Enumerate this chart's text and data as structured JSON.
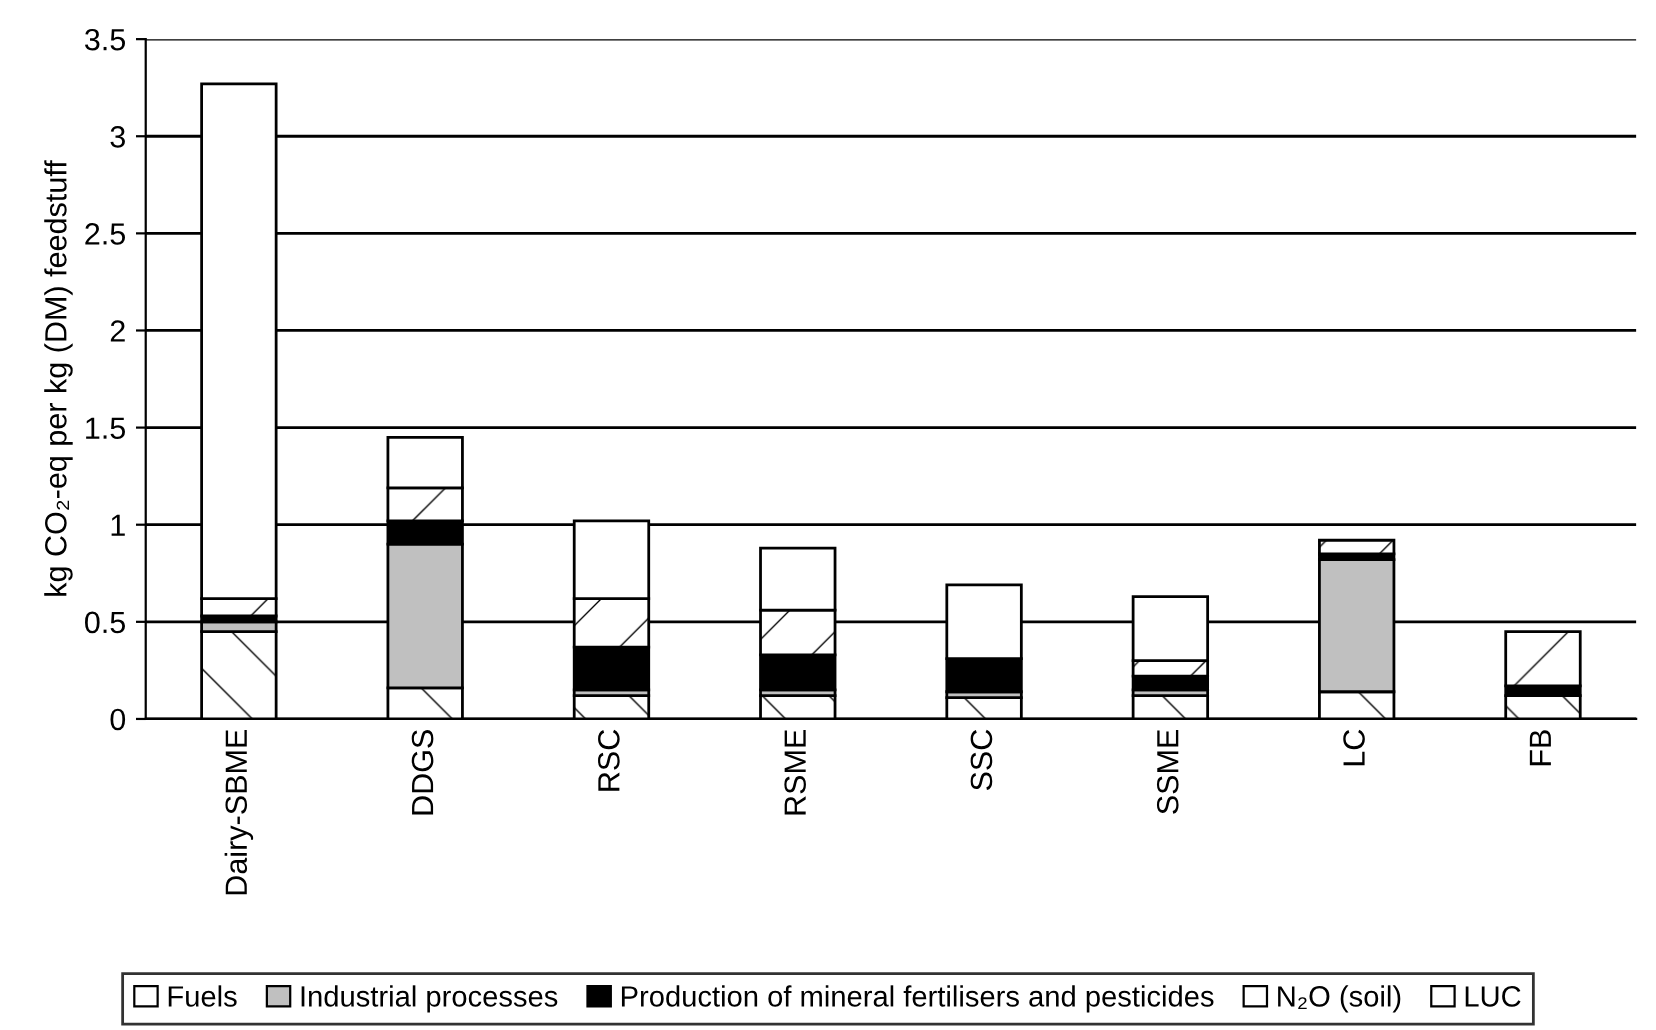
{
  "chart_data": {
    "type": "bar",
    "stacked": true,
    "ylabel": "kg CO₂-eq per kg (DM) feedstuff",
    "categories": [
      "Dairy-SBME",
      "DDGS",
      "RSC",
      "RSME",
      "SSC",
      "SSME",
      "LC",
      "FB"
    ],
    "series": [
      {
        "name": "Fuels",
        "color": "#ffffff",
        "values": [
          0.45,
          0.16,
          0.12,
          0.12,
          0.11,
          0.12,
          0.14,
          0.12
        ]
      },
      {
        "name": "Industrial processes",
        "color": "#c0c0c0",
        "values": [
          0.05,
          0.74,
          0.03,
          0.03,
          0.03,
          0.03,
          0.68,
          0
        ]
      },
      {
        "name": "Production of mineral fertilisers and pesticides",
        "color": "#000000",
        "values": [
          0.03,
          0.12,
          0.22,
          0.18,
          0.17,
          0.07,
          0.03,
          0.05
        ]
      },
      {
        "name": "N₂O (soil)",
        "color": "#ffffff",
        "values": [
          0.09,
          0.17,
          0.25,
          0.23,
          0,
          0.08,
          0.07,
          0.28
        ]
      },
      {
        "name": "LUC",
        "color": "#ffffff",
        "values": [
          2.65,
          0.26,
          0.4,
          0.32,
          0.38,
          0.33,
          0,
          0
        ]
      }
    ],
    "ylim": [
      0,
      3.5
    ],
    "yticks": [
      0,
      0.5,
      1,
      1.5,
      2,
      2.5,
      3,
      3.5
    ],
    "grid": "y",
    "legend": "bottom"
  }
}
